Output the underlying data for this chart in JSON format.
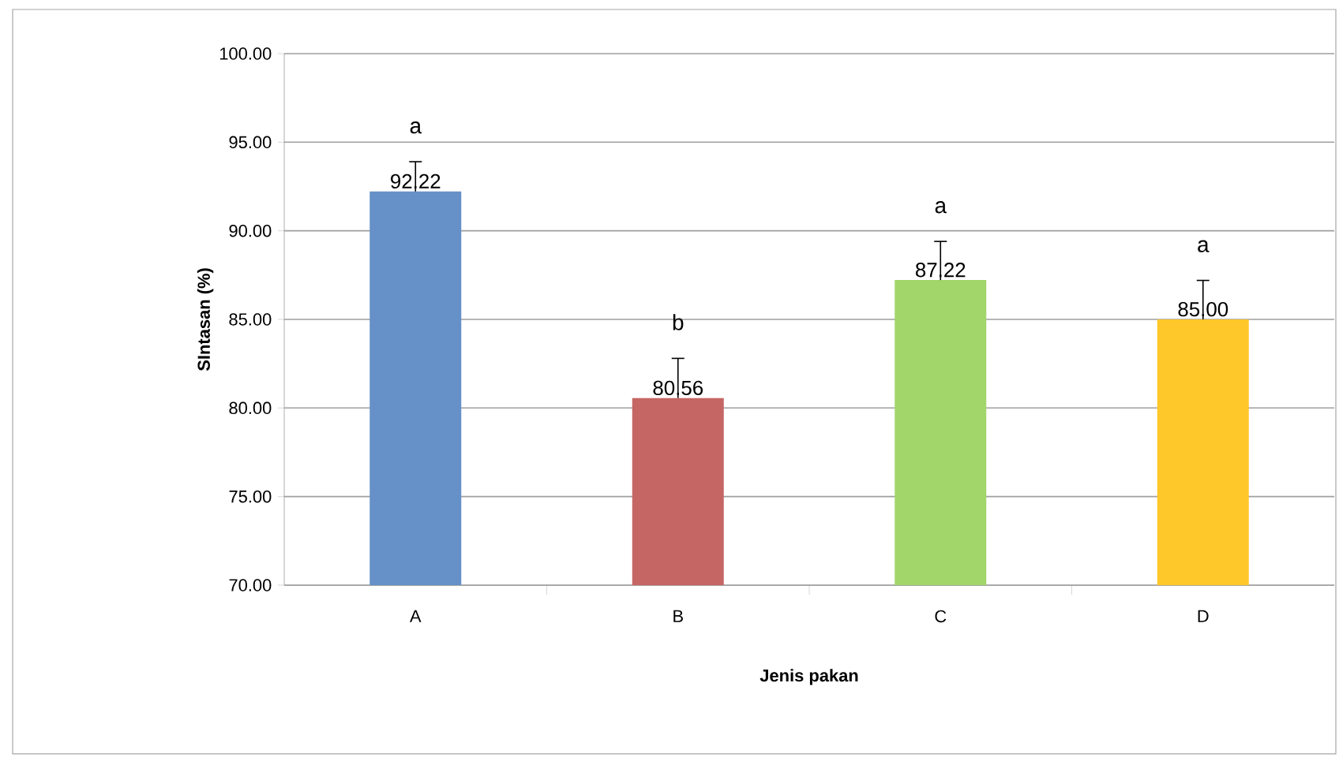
{
  "chart_data": {
    "type": "bar",
    "xlabel": "Jenis pakan",
    "ylabel": "SIntasan (%)",
    "categories": [
      "A",
      "B",
      "C",
      "D"
    ],
    "values": [
      92.22,
      80.56,
      87.22,
      85.0
    ],
    "colors": [
      "#6690c8",
      "#c66664",
      "#a2d56a",
      "#fec72a"
    ],
    "errors": [
      [
        92.22,
        93.9
      ],
      [
        80.56,
        82.8
      ],
      [
        87.22,
        89.4
      ],
      [
        85.0,
        87.2
      ]
    ],
    "value_labels": [
      "92.22",
      "80.56",
      "87.22",
      "85.00"
    ],
    "ylim": [
      70,
      100
    ],
    "yticks": [
      {
        "value": 70,
        "label": "70.00"
      },
      {
        "value": 75,
        "label": "75.00"
      },
      {
        "value": 80,
        "label": "80.00"
      },
      {
        "value": 85,
        "label": "85.00"
      },
      {
        "value": 90,
        "label": "90.00"
      },
      {
        "value": 95,
        "label": "95.00"
      },
      {
        "value": 100,
        "label": "100.00"
      }
    ],
    "grid": "y",
    "legend": false,
    "annotations": [
      "a",
      "b",
      "a",
      "a"
    ]
  }
}
